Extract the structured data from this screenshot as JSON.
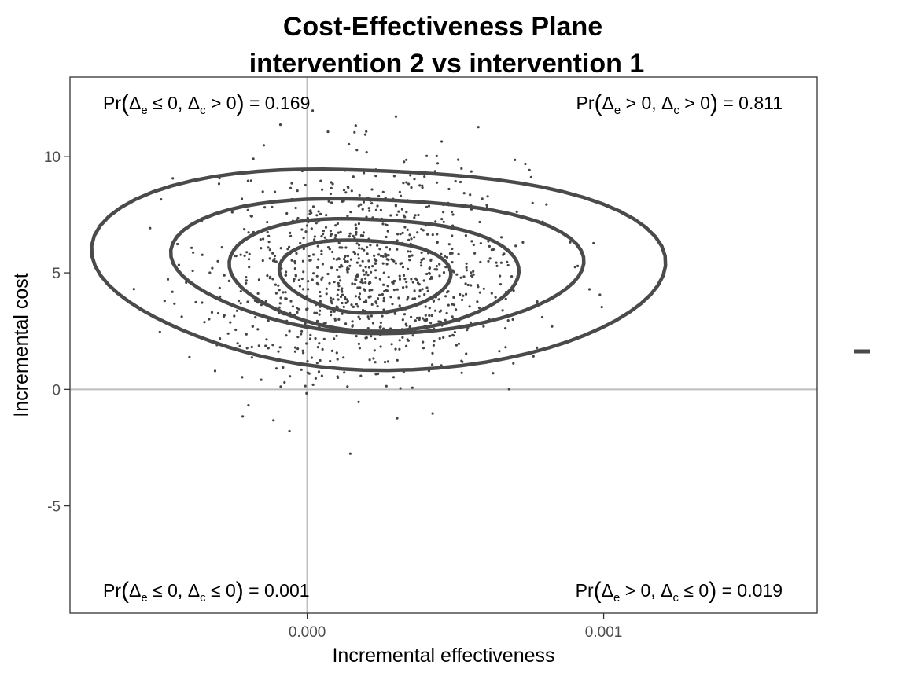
{
  "chart_data": {
    "type": "scatter",
    "title": "Cost-Effectiveness Plane",
    "subtitle": "intervention 2 vs intervention 1",
    "xlabel": "Incremental effectiveness",
    "ylabel": "Incremental cost",
    "xlim": [
      -0.0008,
      0.00172
    ],
    "ylim": [
      -9.6,
      13.4
    ],
    "x_ticks": [
      0.0,
      0.001
    ],
    "x_tick_labels": [
      "0.000",
      "0.001"
    ],
    "y_ticks": [
      10,
      5,
      0,
      -5
    ],
    "y_tick_labels": [
      "10",
      "5",
      "0",
      "-5"
    ],
    "grid": false,
    "legend": "right",
    "legend_key": "line",
    "colors": {
      "points": "#444444",
      "contours": "#4a4a4a",
      "reference_lines": "#bebebe",
      "frame": "#333333"
    },
    "quadrant_probabilities": [
      {
        "position": "top-left",
        "text": "Pr(Δe ≤ 0, Δc > 0) = 0.169",
        "value": 0.169
      },
      {
        "position": "top-right",
        "text": "Pr(Δe > 0, Δc > 0) = 0.811",
        "value": 0.811
      },
      {
        "position": "bottom-left",
        "text": "Pr(Δe ≤ 0, Δc ≤ 0) = 0.001",
        "value": 0.001
      },
      {
        "position": "bottom-right",
        "text": "Pr(Δe > 0, Δc ≤ 0) = 0.019",
        "value": 0.019
      }
    ],
    "density_contours": [
      {
        "level": 1,
        "center": [
          0.00019,
          5.3
        ],
        "rx": 0.00107,
        "ry": 4.55
      },
      {
        "level": 2,
        "center": [
          0.0002,
          5.4
        ],
        "rx": 0.00077,
        "ry": 3.05
      },
      {
        "level": 3,
        "center": [
          0.0002,
          5.0
        ],
        "rx": 0.00054,
        "ry": 2.55
      },
      {
        "level": 4,
        "center": [
          0.00018,
          4.9
        ],
        "rx": 0.00032,
        "ry": 1.65
      }
    ],
    "simulation_summary": {
      "mean_effectiveness": 0.0002,
      "mean_cost": 5.0,
      "n_draws": 1000
    }
  },
  "quadrants": {
    "tl": {
      "lhs": "Pr",
      "a": "e",
      "op1": " ≤ 0, ",
      "b": "c",
      "op2": " > 0",
      "rhs": " = 0.169"
    },
    "tr": {
      "lhs": "Pr",
      "a": "e",
      "op1": " > 0, ",
      "b": "c",
      "op2": " > 0",
      "rhs": " = 0.811"
    },
    "bl": {
      "lhs": "Pr",
      "a": "e",
      "op1": " ≤ 0, ",
      "b": "c",
      "op2": " ≤ 0",
      "rhs": " = 0.001"
    },
    "br": {
      "lhs": "Pr",
      "a": "e",
      "op1": " > 0, ",
      "b": "c",
      "op2": " ≤ 0",
      "rhs": " = 0.019"
    }
  }
}
